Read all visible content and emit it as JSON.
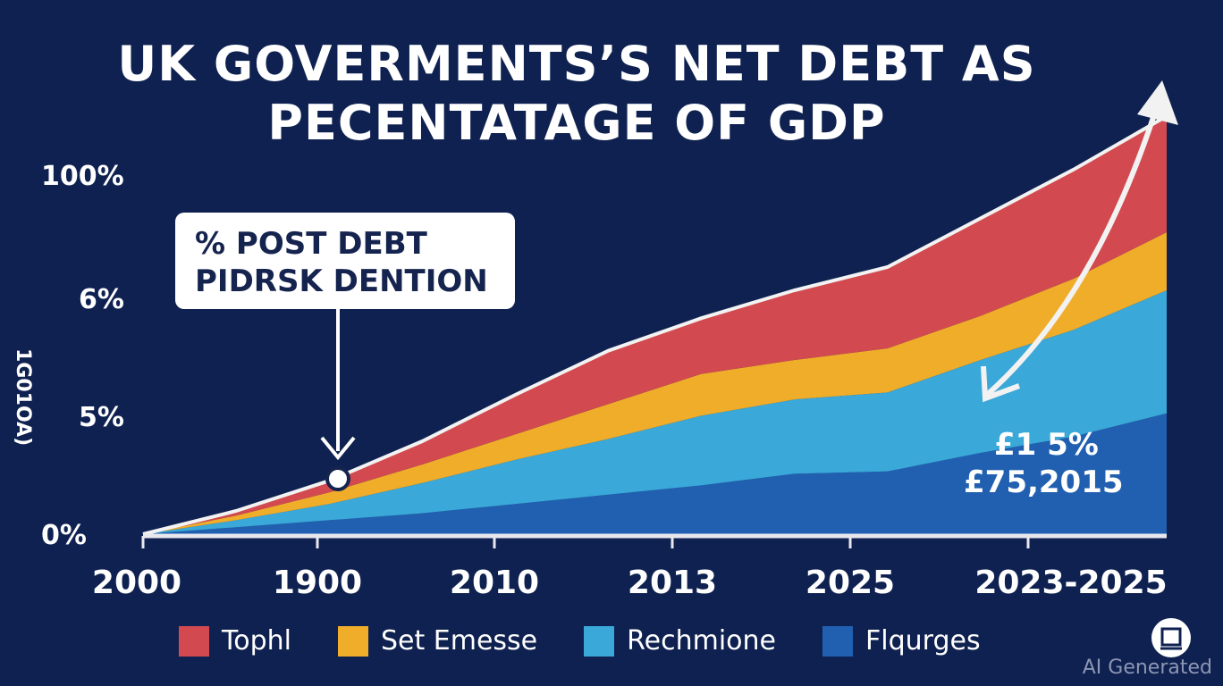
{
  "chart_data": {
    "type": "area",
    "stacked": true,
    "title_lines": [
      "UK GOVERMENTS’S NET DEBT AS",
      "PECENTATAGE OF GDP"
    ],
    "ylabel": "1G01OA)",
    "y_tick_labels": [
      "0%",
      "5%",
      "6%",
      "100%"
    ],
    "x_tick_labels": [
      "2000",
      "1900",
      "2010",
      "2013",
      "2025",
      "2023-2025"
    ],
    "x": [
      0,
      1,
      2,
      3,
      4,
      5,
      6,
      7,
      8,
      9,
      10,
      11
    ],
    "series": [
      {
        "name": "Flqurges",
        "color": "#2160b0",
        "values": [
          0.0,
          0.3,
          0.6,
          0.9,
          1.3,
          1.7,
          2.1,
          2.6,
          2.7,
          3.5,
          4.2,
          5.2
        ]
      },
      {
        "name": "Rechmione",
        "color": "#3aa8d8",
        "values": [
          0.0,
          0.3,
          0.7,
          1.3,
          1.9,
          2.4,
          3.0,
          3.2,
          3.4,
          4.0,
          4.6,
          5.3
        ]
      },
      {
        "name": "Set Emesse",
        "color": "#f0ad2a",
        "values": [
          0.0,
          0.2,
          0.5,
          0.8,
          1.1,
          1.5,
          1.8,
          1.7,
          1.9,
          1.9,
          2.2,
          2.5
        ]
      },
      {
        "name": "Tophl",
        "color": "#d24a4f",
        "values": [
          0.0,
          0.2,
          0.5,
          1.0,
          1.7,
          2.3,
          2.4,
          3.0,
          3.5,
          4.2,
          4.7,
          5.0
        ]
      }
    ],
    "legend_position": "bottom"
  },
  "callout": {
    "lines": [
      "% POST DEBT",
      "PIDRSK DENTION"
    ]
  },
  "annotation": {
    "lines": [
      "£1 5%",
      "£75,2015"
    ]
  },
  "legend": [
    {
      "label": "Tophl",
      "color": "#d24a4f"
    },
    {
      "label": "Set Emesse",
      "color": "#f0ad2a"
    },
    {
      "label": "Rechmione",
      "color": "#3aa8d8"
    },
    {
      "label": "Flqurges",
      "color": "#2160b0"
    }
  ],
  "watermark": "AI Generated",
  "colors": {
    "background": "#0f2150",
    "axis": "#e8e8ee",
    "text": "#ffffff",
    "callout_text": "#15244f"
  }
}
